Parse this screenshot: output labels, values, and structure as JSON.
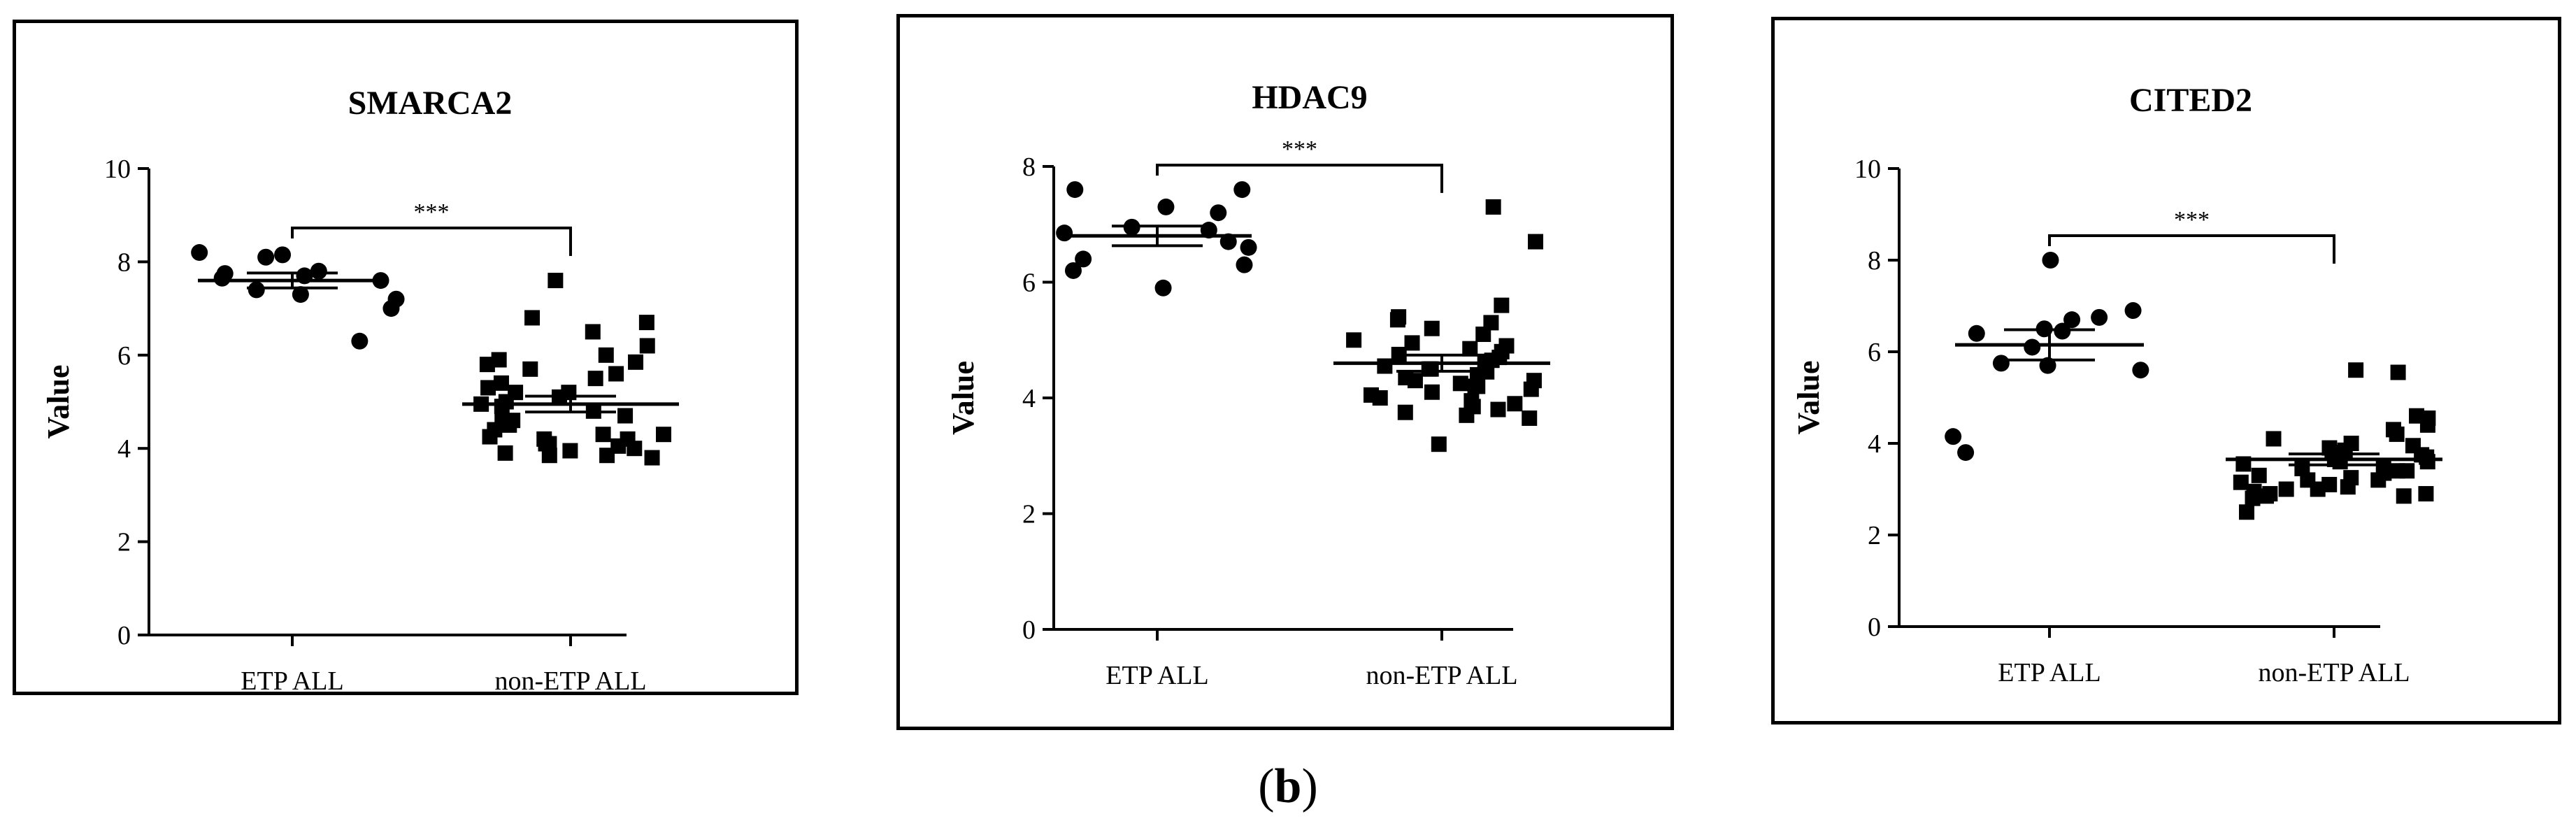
{
  "caption": {
    "open": "(",
    "letter": "b",
    "close": ")"
  },
  "chart_data": [
    {
      "type": "scatter",
      "title": "SMARCA2",
      "ylabel": "Value",
      "ylim": [
        0,
        10
      ],
      "yticks": [
        0,
        2,
        4,
        6,
        8,
        10
      ],
      "categories": [
        "ETP ALL",
        "non-ETP ALL"
      ],
      "significance": "***",
      "series": [
        {
          "marker": "circle",
          "mean": 7.6,
          "sem": 0.16,
          "values": [
            7.6,
            8.2,
            7.7,
            8.1,
            8.15,
            7.8,
            7.65,
            7.4,
            7.3,
            7.0,
            6.3,
            7.75,
            7.2
          ]
        },
        {
          "marker": "square",
          "mean": 4.95,
          "sem": 0.17,
          "values": [
            7.6,
            6.8,
            6.7,
            6.5,
            6.2,
            6.0,
            5.9,
            5.85,
            5.8,
            5.7,
            5.6,
            5.5,
            5.4,
            5.3,
            5.2,
            5.2,
            5.1,
            5.0,
            4.95,
            4.9,
            4.8,
            4.7,
            4.6,
            4.5,
            4.4,
            4.3,
            4.25,
            4.2,
            4.1,
            4.05,
            4.0,
            3.95,
            3.9,
            3.85,
            3.85,
            3.8,
            4.6,
            4.3,
            4.2,
            4.1
          ]
        }
      ]
    },
    {
      "type": "scatter",
      "title": "HDAC9",
      "ylabel": "Value",
      "ylim": [
        0,
        8
      ],
      "yticks": [
        0,
        2,
        4,
        6,
        8
      ],
      "categories": [
        "ETP ALL",
        "non-ETP ALL"
      ],
      "significance": "***",
      "series": [
        {
          "marker": "circle",
          "mean": 6.8,
          "sem": 0.17,
          "values": [
            7.6,
            7.6,
            7.3,
            7.2,
            6.95,
            6.9,
            6.85,
            6.7,
            6.6,
            6.4,
            6.3,
            6.2,
            5.9
          ]
        },
        {
          "marker": "square",
          "mean": 4.6,
          "sem": 0.14,
          "values": [
            7.3,
            6.7,
            5.6,
            5.4,
            5.35,
            5.3,
            5.2,
            5.1,
            5.0,
            4.95,
            4.9,
            4.85,
            4.8,
            4.75,
            4.7,
            4.65,
            4.6,
            4.55,
            4.5,
            4.45,
            4.4,
            4.35,
            4.3,
            4.25,
            4.2,
            4.15,
            4.1,
            4.05,
            4.0,
            3.95,
            3.9,
            3.85,
            3.8,
            3.75,
            3.7,
            3.65,
            3.2,
            4.3,
            4.5,
            4.2
          ]
        }
      ]
    },
    {
      "type": "scatter",
      "title": "CITED2",
      "ylabel": "Value",
      "ylim": [
        0,
        10
      ],
      "yticks": [
        0,
        2,
        4,
        6,
        8,
        10
      ],
      "categories": [
        "ETP ALL",
        "non-ETP ALL"
      ],
      "significance": "***",
      "series": [
        {
          "marker": "circle",
          "mean": 6.15,
          "sem": 0.33,
          "values": [
            8.0,
            6.9,
            6.75,
            6.7,
            6.5,
            6.45,
            6.4,
            6.1,
            5.75,
            5.7,
            5.6,
            4.15,
            3.8
          ]
        },
        {
          "marker": "square",
          "mean": 3.65,
          "sem": 0.12,
          "values": [
            5.6,
            5.55,
            4.6,
            4.55,
            4.4,
            4.3,
            4.2,
            4.1,
            4.0,
            3.95,
            3.9,
            3.85,
            3.8,
            3.75,
            3.7,
            3.65,
            3.6,
            3.55,
            3.5,
            3.45,
            3.4,
            3.35,
            3.3,
            3.25,
            3.2,
            3.15,
            3.1,
            3.05,
            3.0,
            2.95,
            2.9,
            2.9,
            2.85,
            2.85,
            2.8,
            2.5,
            3.6,
            3.4,
            3.2,
            3.0
          ]
        }
      ]
    }
  ]
}
